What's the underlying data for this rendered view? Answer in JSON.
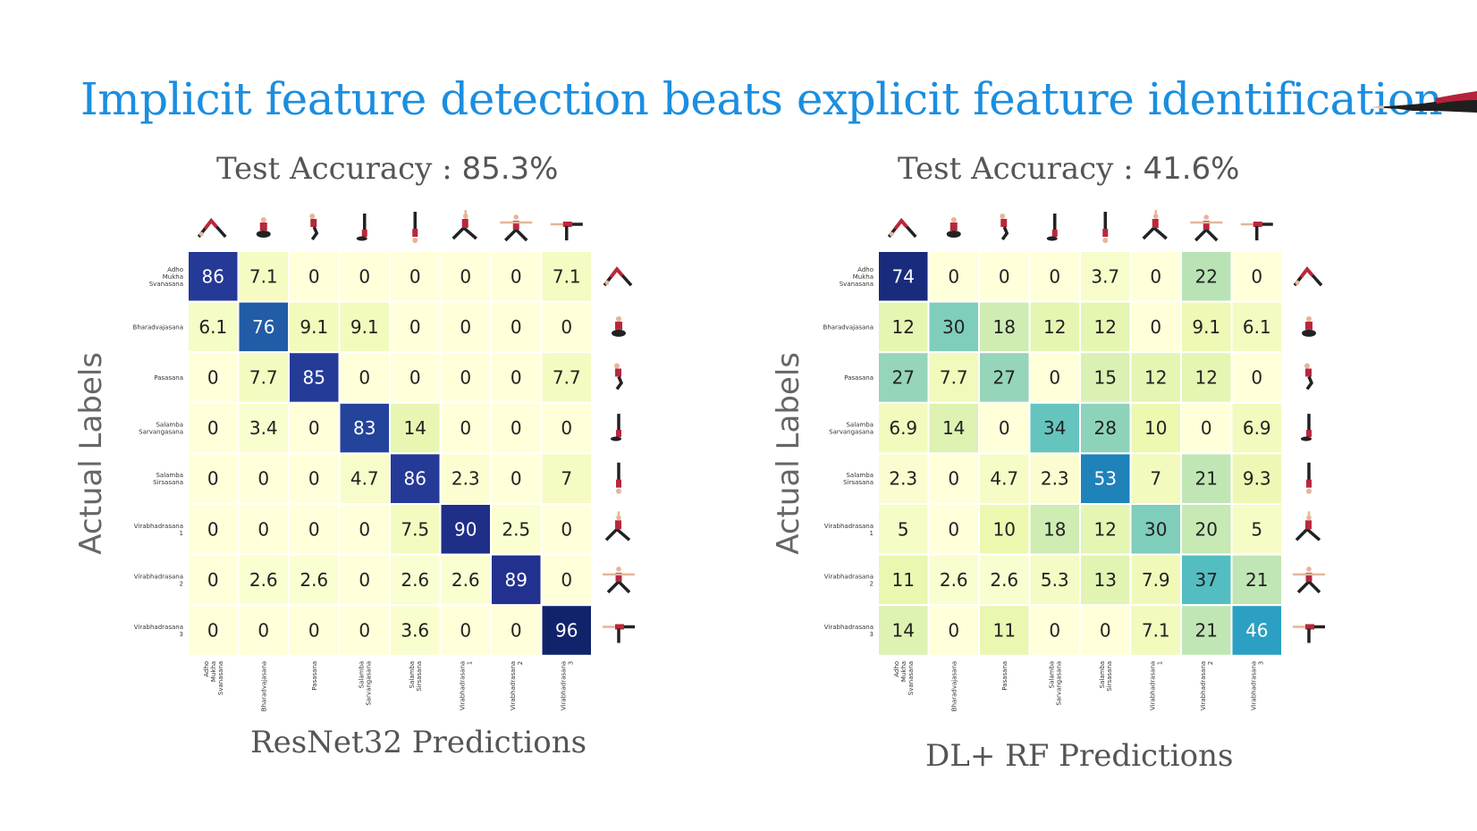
{
  "slide": {
    "title": "Implicit feature detection beats explicit feature identification",
    "title_color": "#1b8ee0"
  },
  "chart_data": [
    {
      "type": "heatmap",
      "title_label": "Test Accuracy :",
      "title_value": "85.3%",
      "ylabel": "Actual Labels",
      "xlabel": "ResNet32 Predictions",
      "row_labels": [
        [
          "Adho",
          "Mukha",
          "Svanasana"
        ],
        [
          "Bharadvajasana"
        ],
        [
          "Pasasana"
        ],
        [
          "Salamba",
          "Sarvangasana"
        ],
        [
          "Salamba",
          "Sirsasana"
        ],
        [
          "Virabhadrasana",
          "1"
        ],
        [
          "Virabhadrasana",
          "2"
        ],
        [
          "Virabhadrasana",
          "3"
        ]
      ],
      "col_labels": [
        [
          "Adho",
          "Mukha",
          "Svanasana"
        ],
        [
          "Bharadvajasana"
        ],
        [
          "Pasasana"
        ],
        [
          "Salamba",
          "Sarvangasana"
        ],
        [
          "Salamba",
          "Sirsasana"
        ],
        [
          "Virabhadrasana",
          "1"
        ],
        [
          "Virabhadrasana",
          "2"
        ],
        [
          "Virabhadrasana",
          "3"
        ]
      ],
      "matrix": [
        [
          "86",
          "7.1",
          "0",
          "0",
          "0",
          "0",
          "0",
          "7.1"
        ],
        [
          "6.1",
          "76",
          "9.1",
          "9.1",
          "0",
          "0",
          "0",
          "0"
        ],
        [
          "0",
          "7.7",
          "85",
          "0",
          "0",
          "0",
          "0",
          "7.7"
        ],
        [
          "0",
          "3.4",
          "0",
          "83",
          "14",
          "0",
          "0",
          "0"
        ],
        [
          "0",
          "0",
          "0",
          "4.7",
          "86",
          "2.3",
          "0",
          "7"
        ],
        [
          "0",
          "0",
          "0",
          "0",
          "7.5",
          "90",
          "2.5",
          "0"
        ],
        [
          "0",
          "2.6",
          "2.6",
          "0",
          "2.6",
          "2.6",
          "89",
          "0"
        ],
        [
          "0",
          "0",
          "0",
          "0",
          "3.6",
          "0",
          "0",
          "96"
        ]
      ],
      "colormap": "YlGnBu",
      "vmin": 0,
      "vmax": 100
    },
    {
      "type": "heatmap",
      "title_label": "Test Accuracy :",
      "title_value": "41.6%",
      "ylabel": "Actual Labels",
      "xlabel": "DL+ RF Predictions",
      "row_labels": [
        [
          "Adho",
          "Mukha",
          "Svanasana"
        ],
        [
          "Bharadvajasana"
        ],
        [
          "Pasasana"
        ],
        [
          "Salamba",
          "Sarvangasana"
        ],
        [
          "Salamba",
          "Sirsasana"
        ],
        [
          "Virabhadrasana",
          "1"
        ],
        [
          "Virabhadrasana",
          "2"
        ],
        [
          "Virabhadrasana",
          "3"
        ]
      ],
      "col_labels": [
        [
          "Adho",
          "Mukha",
          "Svanasana"
        ],
        [
          "Bharadvajasana"
        ],
        [
          "Pasasana"
        ],
        [
          "Salamba",
          "Sarvangasana"
        ],
        [
          "Salamba",
          "Sirsasana"
        ],
        [
          "Virabhadrasana",
          "1"
        ],
        [
          "Virabhadrasana",
          "2"
        ],
        [
          "Virabhadrasana",
          "3"
        ]
      ],
      "matrix": [
        [
          "74",
          "0",
          "0",
          "0",
          "3.7",
          "0",
          "22",
          "0"
        ],
        [
          "12",
          "30",
          "18",
          "12",
          "12",
          "0",
          "9.1",
          "6.1"
        ],
        [
          "27",
          "7.7",
          "27",
          "0",
          "15",
          "12",
          "12",
          "0"
        ],
        [
          "6.9",
          "14",
          "0",
          "34",
          "28",
          "10",
          "0",
          "6.9"
        ],
        [
          "2.3",
          "0",
          "4.7",
          "2.3",
          "53",
          "7",
          "21",
          "9.3"
        ],
        [
          "5",
          "0",
          "10",
          "18",
          "12",
          "30",
          "20",
          "5"
        ],
        [
          "11",
          "2.6",
          "2.6",
          "5.3",
          "13",
          "7.9",
          "37",
          "21"
        ],
        [
          "14",
          "0",
          "11",
          "0",
          "0",
          "7.1",
          "21",
          "46"
        ]
      ],
      "colormap": "YlGnBu",
      "vmin": 0,
      "vmax": 80
    }
  ]
}
